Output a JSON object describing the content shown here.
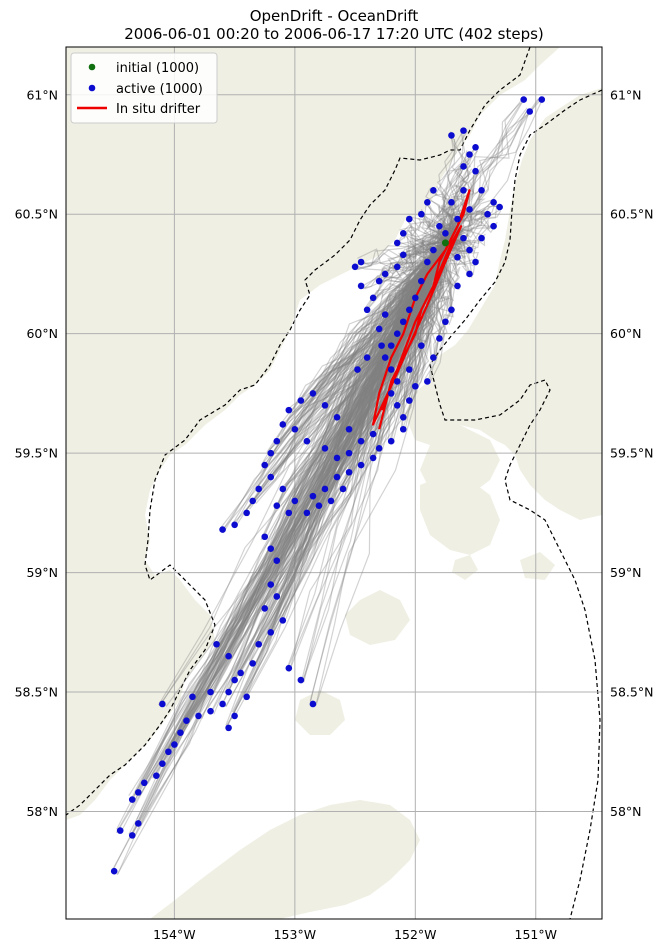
{
  "title": {
    "line1": "OpenDrift - OceanDrift",
    "line2": "2006-06-01 00:20 to 2006-06-17 17:20 UTC (402 steps)"
  },
  "colors": {
    "land": "#efefe4",
    "sea": "#ffffff",
    "grid": "#b0b0b0",
    "trajectory": "#808080",
    "initial": "#107010",
    "active": "#0c0cd0",
    "drifter": "#ee0000",
    "boundary": "#000000"
  },
  "map": {
    "lon_range": [
      -154.9,
      -150.45
    ],
    "lat_range": [
      57.55,
      61.2
    ],
    "lat_ticks": [
      {
        "value": 58.0,
        "label": "58°N"
      },
      {
        "value": 58.5,
        "label": "58.5°N"
      },
      {
        "value": 59.0,
        "label": "59°N"
      },
      {
        "value": 59.5,
        "label": "59.5°N"
      },
      {
        "value": 60.0,
        "label": "60°N"
      },
      {
        "value": 60.5,
        "label": "60.5°N"
      },
      {
        "value": 61.0,
        "label": "61°N"
      }
    ],
    "lon_ticks": [
      {
        "value": -154.0,
        "label": "154°W"
      },
      {
        "value": -153.0,
        "label": "153°W"
      },
      {
        "value": -152.0,
        "label": "152°W"
      },
      {
        "value": -151.0,
        "label": "151°W"
      }
    ],
    "grid": true
  },
  "legend": {
    "placement": "top-left",
    "items": [
      {
        "label": "initial (1000)",
        "kind": "marker",
        "color": "#107010"
      },
      {
        "label": "active (1000)",
        "kind": "marker",
        "color": "#0c0cd0"
      },
      {
        "label": "In situ drifter",
        "kind": "line",
        "color": "#ee0000"
      }
    ]
  },
  "chart_data": {
    "type": "scatter",
    "title": "OpenDrift - OceanDrift",
    "subtitle": "2006-06-01 00:20 to 2006-06-17 17:20 UTC (402 steps)",
    "initial_position": {
      "lon": -151.75,
      "lat": 60.38,
      "count": 1000
    },
    "active_count": 1000,
    "steps": 402,
    "start_time": "2006-06-01 00:20",
    "end_time": "2006-06-17 17:20 UTC",
    "active_particles": [
      [
        -151.1,
        60.98
      ],
      [
        -150.95,
        60.98
      ],
      [
        -151.05,
        60.93
      ],
      [
        -151.6,
        60.85
      ],
      [
        -151.7,
        60.83
      ],
      [
        -151.5,
        60.78
      ],
      [
        -151.55,
        60.75
      ],
      [
        -151.6,
        60.7
      ],
      [
        -151.5,
        60.68
      ],
      [
        -151.45,
        60.6
      ],
      [
        -151.35,
        60.55
      ],
      [
        -151.3,
        60.53
      ],
      [
        -151.4,
        60.5
      ],
      [
        -151.35,
        60.45
      ],
      [
        -151.45,
        60.4
      ],
      [
        -151.6,
        60.4
      ],
      [
        -151.55,
        60.35
      ],
      [
        -151.5,
        60.3
      ],
      [
        -151.55,
        60.25
      ],
      [
        -151.65,
        60.2
      ],
      [
        -151.85,
        60.6
      ],
      [
        -151.9,
        60.55
      ],
      [
        -151.95,
        60.5
      ],
      [
        -152.05,
        60.48
      ],
      [
        -152.1,
        60.42
      ],
      [
        -152.15,
        60.38
      ],
      [
        -152.1,
        60.33
      ],
      [
        -152.15,
        60.28
      ],
      [
        -152.25,
        60.25
      ],
      [
        -152.3,
        60.22
      ],
      [
        -152.35,
        60.15
      ],
      [
        -152.4,
        60.1
      ],
      [
        -152.45,
        60.2
      ],
      [
        -152.5,
        60.28
      ],
      [
        -152.45,
        60.3
      ],
      [
        -151.8,
        60.45
      ],
      [
        -151.75,
        60.42
      ],
      [
        -151.85,
        60.35
      ],
      [
        -151.9,
        60.3
      ],
      [
        -151.95,
        60.22
      ],
      [
        -152.0,
        60.15
      ],
      [
        -152.05,
        60.1
      ],
      [
        -152.1,
        60.05
      ],
      [
        -152.15,
        60.0
      ],
      [
        -152.2,
        59.95
      ],
      [
        -152.25,
        59.9
      ],
      [
        -152.2,
        59.85
      ],
      [
        -152.15,
        59.8
      ],
      [
        -152.2,
        59.75
      ],
      [
        -152.15,
        59.7
      ],
      [
        -152.1,
        59.65
      ],
      [
        -152.05,
        59.72
      ],
      [
        -152.1,
        59.6
      ],
      [
        -152.2,
        59.55
      ],
      [
        -152.3,
        59.52
      ],
      [
        -152.35,
        59.48
      ],
      [
        -152.45,
        59.45
      ],
      [
        -152.55,
        59.42
      ],
      [
        -152.65,
        59.4
      ],
      [
        -152.6,
        59.35
      ],
      [
        -152.7,
        59.3
      ],
      [
        -152.75,
        59.35
      ],
      [
        -152.8,
        59.28
      ],
      [
        -152.85,
        59.32
      ],
      [
        -152.9,
        59.25
      ],
      [
        -153.0,
        59.3
      ],
      [
        -153.05,
        59.25
      ],
      [
        -153.1,
        59.35
      ],
      [
        -153.15,
        59.28
      ],
      [
        -153.2,
        59.4
      ],
      [
        -153.25,
        59.45
      ],
      [
        -153.2,
        59.5
      ],
      [
        -153.15,
        59.55
      ],
      [
        -153.1,
        59.62
      ],
      [
        -153.05,
        59.68
      ],
      [
        -152.95,
        59.72
      ],
      [
        -152.85,
        59.75
      ],
      [
        -152.75,
        59.7
      ],
      [
        -152.65,
        59.65
      ],
      [
        -152.55,
        59.6
      ],
      [
        -153.3,
        59.35
      ],
      [
        -153.35,
        59.3
      ],
      [
        -153.4,
        59.25
      ],
      [
        -153.5,
        59.2
      ],
      [
        -153.6,
        59.18
      ],
      [
        -153.25,
        59.15
      ],
      [
        -153.2,
        59.1
      ],
      [
        -153.15,
        59.05
      ],
      [
        -153.2,
        58.95
      ],
      [
        -153.15,
        58.9
      ],
      [
        -153.25,
        58.85
      ],
      [
        -153.1,
        58.8
      ],
      [
        -153.2,
        58.75
      ],
      [
        -153.3,
        58.7
      ],
      [
        -153.35,
        58.62
      ],
      [
        -153.45,
        58.58
      ],
      [
        -153.5,
        58.55
      ],
      [
        -153.55,
        58.5
      ],
      [
        -153.6,
        58.45
      ],
      [
        -153.7,
        58.42
      ],
      [
        -153.8,
        58.4
      ],
      [
        -153.9,
        58.38
      ],
      [
        -153.95,
        58.33
      ],
      [
        -154.0,
        58.28
      ],
      [
        -154.05,
        58.25
      ],
      [
        -154.1,
        58.2
      ],
      [
        -154.15,
        58.15
      ],
      [
        -154.25,
        58.12
      ],
      [
        -154.3,
        58.08
      ],
      [
        -154.35,
        58.05
      ],
      [
        -154.3,
        57.95
      ],
      [
        -154.35,
        57.9
      ],
      [
        -154.45,
        57.92
      ],
      [
        -154.5,
        57.75
      ],
      [
        -154.1,
        58.45
      ],
      [
        -153.65,
        58.7
      ],
      [
        -153.55,
        58.65
      ],
      [
        -153.05,
        58.6
      ],
      [
        -152.95,
        58.55
      ],
      [
        -152.85,
        58.45
      ],
      [
        -153.4,
        58.48
      ],
      [
        -153.5,
        58.4
      ],
      [
        -153.7,
        58.5
      ],
      [
        -153.85,
        58.48
      ],
      [
        -153.55,
        58.35
      ],
      [
        -151.7,
        60.1
      ],
      [
        -151.75,
        60.05
      ],
      [
        -151.8,
        59.98
      ],
      [
        -151.85,
        59.9
      ],
      [
        -151.9,
        59.8
      ],
      [
        -152.0,
        59.78
      ],
      [
        -152.05,
        59.85
      ],
      [
        -151.95,
        59.95
      ],
      [
        -152.35,
        59.58
      ],
      [
        -152.45,
        59.55
      ],
      [
        -152.55,
        59.5
      ],
      [
        -152.65,
        59.48
      ],
      [
        -152.75,
        59.52
      ],
      [
        -152.9,
        59.55
      ],
      [
        -153.0,
        59.6
      ],
      [
        -152.25,
        60.08
      ],
      [
        -152.3,
        60.02
      ],
      [
        -152.28,
        59.95
      ],
      [
        -152.4,
        59.9
      ],
      [
        -152.48,
        59.85
      ],
      [
        -151.65,
        60.48
      ],
      [
        -151.7,
        60.55
      ],
      [
        -151.6,
        60.6
      ],
      [
        -151.55,
        60.52
      ],
      [
        -151.65,
        60.32
      ]
    ],
    "drifter_track": [
      [
        -152.3,
        59.6
      ],
      [
        -152.25,
        59.7
      ],
      [
        -152.2,
        59.8
      ],
      [
        -152.1,
        59.9
      ],
      [
        -152.0,
        60.0
      ],
      [
        -151.95,
        60.1
      ],
      [
        -151.85,
        60.2
      ],
      [
        -151.8,
        60.3
      ],
      [
        -151.7,
        60.4
      ],
      [
        -151.6,
        60.5
      ],
      [
        -151.55,
        60.6
      ],
      [
        -151.65,
        60.45
      ],
      [
        -151.75,
        60.35
      ],
      [
        -151.9,
        60.25
      ],
      [
        -152.0,
        60.15
      ],
      [
        -152.1,
        60.0
      ],
      [
        -152.2,
        59.9
      ],
      [
        -152.3,
        59.75
      ],
      [
        -152.35,
        59.62
      ],
      [
        -152.2,
        59.78
      ],
      [
        -152.05,
        59.95
      ],
      [
        -151.9,
        60.12
      ],
      [
        -151.75,
        60.3
      ],
      [
        -151.62,
        60.45
      ],
      [
        -151.7,
        60.38
      ],
      [
        -151.85,
        60.2
      ],
      [
        -152.0,
        60.05
      ],
      [
        -152.15,
        59.85
      ],
      [
        -152.28,
        59.68
      ]
    ],
    "xlim": [
      -154.9,
      -150.45
    ],
    "ylim": [
      57.55,
      61.2
    ]
  }
}
